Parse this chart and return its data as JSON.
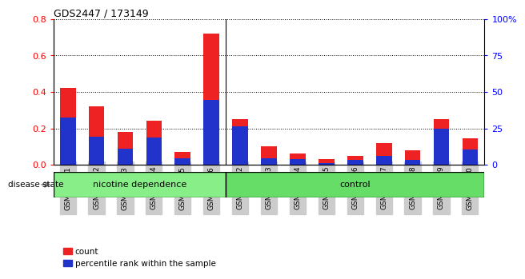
{
  "title": "GDS2447 / 173149",
  "samples": [
    "GSM144131",
    "GSM144132",
    "GSM144133",
    "GSM144134",
    "GSM144135",
    "GSM144136",
    "GSM144122",
    "GSM144123",
    "GSM144124",
    "GSM144125",
    "GSM144126",
    "GSM144127",
    "GSM144128",
    "GSM144129",
    "GSM144130"
  ],
  "count": [
    0.42,
    0.32,
    0.18,
    0.24,
    0.07,
    0.72,
    0.25,
    0.1,
    0.06,
    0.03,
    0.05,
    0.12,
    0.08,
    0.25,
    0.145
  ],
  "percentile": [
    0.26,
    0.155,
    0.09,
    0.15,
    0.036,
    0.355,
    0.21,
    0.036,
    0.032,
    0.01,
    0.027,
    0.048,
    0.028,
    0.2,
    0.082
  ],
  "ylim_left": [
    0,
    0.8
  ],
  "yticks_left": [
    0,
    0.2,
    0.4,
    0.6,
    0.8
  ],
  "ytick_labels_right": [
    "0",
    "25",
    "50",
    "75",
    "100%"
  ],
  "bar_color_red": "#ee2222",
  "bar_color_blue": "#2233cc",
  "nicotine_bg": "#88ee88",
  "control_bg": "#66dd66",
  "label_bg": "#cccccc",
  "bar_width": 0.55,
  "legend_count": "count",
  "legend_pct": "percentile rank within the sample",
  "disease_state_label": "disease state",
  "nicotine_label": "nicotine dependence",
  "control_label": "control",
  "n_nicotine": 6,
  "n_control": 9
}
